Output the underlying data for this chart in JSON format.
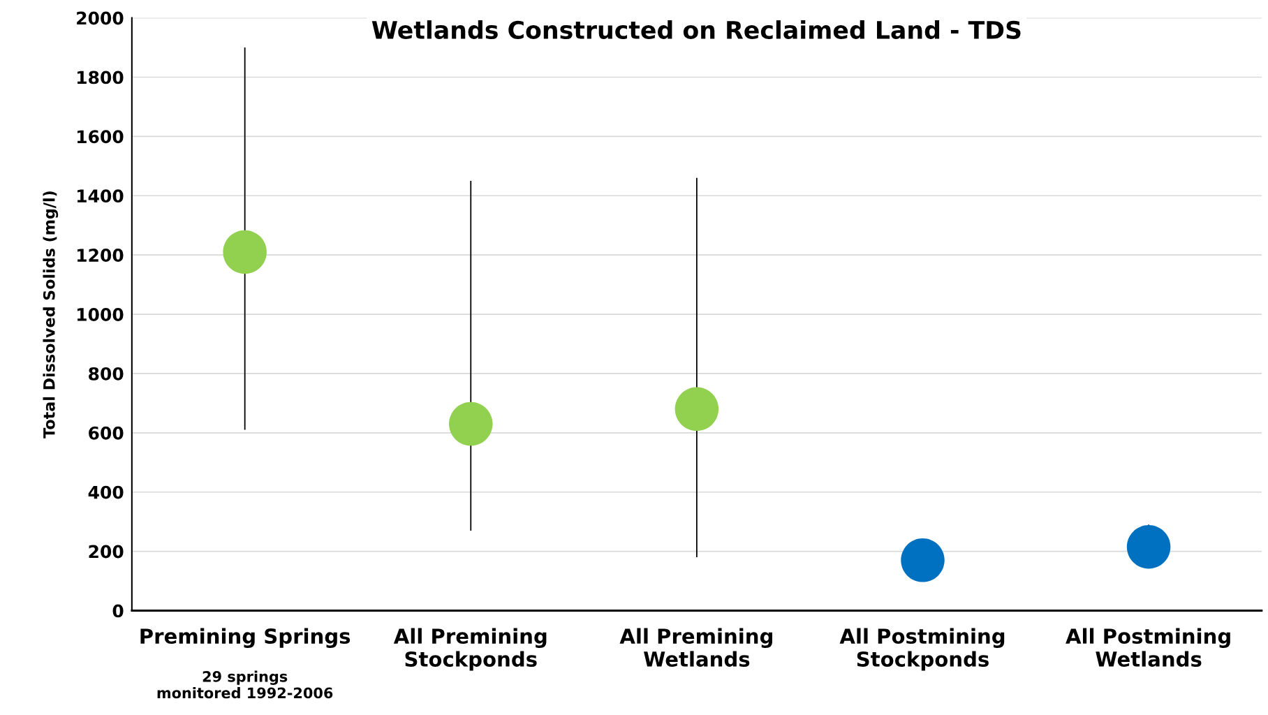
{
  "chart_data": {
    "type": "scatter",
    "title": "Wetlands Constructed on Reclaimed Land - TDS",
    "ylabel": "Total Dissolved Solids (mg/l)",
    "categories": [
      "Premining Springs",
      "All Premining\nStockponds",
      "All Premining\nWetlands",
      "All Postmining\nStockponds",
      "All Postmining\nWetlands"
    ],
    "values": [
      1210,
      630,
      680,
      170,
      215
    ],
    "colors": [
      "#92d050",
      "#92d050",
      "#92d050",
      "#0070c0",
      "#0070c0"
    ],
    "errors": [
      [
        610,
        1900
      ],
      [
        270,
        1450
      ],
      [
        180,
        1460
      ],
      null,
      [
        215,
        290
      ]
    ],
    "ylim": [
      0,
      2000
    ],
    "yticks": [
      0,
      200,
      400,
      600,
      800,
      1000,
      1200,
      1400,
      1600,
      1800,
      2000
    ],
    "grid": "y",
    "marker": "circle",
    "annotations": [
      "29 springs\nmonitored 1992-2006"
    ]
  }
}
